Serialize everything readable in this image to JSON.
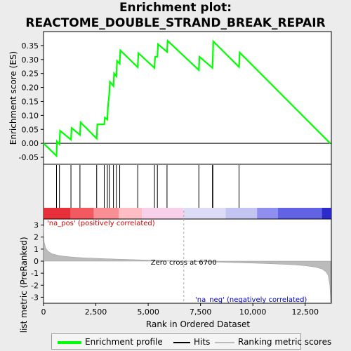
{
  "title_line1": "Enrichment plot:",
  "title_line2": "REACTOME_DOUBLE_STRAND_BREAK_REPAIR",
  "colors": {
    "enrichment_line": "#00ff00",
    "ranking_fill": "#bbbbbb",
    "pos_label": "#cc0000",
    "neg_label": "#0000cc",
    "zero_cross_line": "#aaaaaa"
  },
  "legend": {
    "enrichment_profile": "Enrichment profile",
    "hits": "Hits",
    "ranking_metric_scores": "Ranking metric scores"
  },
  "chart_data": [
    {
      "type": "line",
      "name": "enrichment-score-panel",
      "ylabel": "Enrichment score (ES)",
      "ylim": [
        -0.075,
        0.4
      ],
      "xlim": [
        0,
        13750
      ],
      "yticks": [
        -0.05,
        0.0,
        0.05,
        0.1,
        0.15,
        0.2,
        0.25,
        0.3,
        0.35
      ],
      "ytick_labels": [
        "-0.05",
        "0.00",
        "0.05",
        "0.10",
        "0.15",
        "0.20",
        "0.25",
        "0.30",
        "0.35"
      ],
      "grid": false,
      "series": [
        {
          "x": [
            0,
            620,
            640,
            760,
            790,
            1310,
            1340,
            1740,
            1770,
            2540,
            2570,
            2900,
            2930,
            3050,
            3080,
            3140,
            3170,
            3340,
            3370,
            3480,
            3510,
            3640,
            3670,
            4500,
            4530,
            5300,
            5330,
            5440,
            5470,
            5900,
            5930,
            7420,
            7450,
            8070,
            8090,
            8110,
            9340,
            9370,
            13700
          ],
          "y": [
            0.0,
            -0.045,
            0.007,
            -0.003,
            0.045,
            0.013,
            0.055,
            0.03,
            0.075,
            0.017,
            0.068,
            0.068,
            0.092,
            0.085,
            0.13,
            0.175,
            0.22,
            0.205,
            0.25,
            0.24,
            0.295,
            0.285,
            0.333,
            0.272,
            0.323,
            0.27,
            0.31,
            0.31,
            0.355,
            0.327,
            0.367,
            0.262,
            0.31,
            0.27,
            0.31,
            0.365,
            0.273,
            0.325,
            0.0
          ]
        }
      ]
    },
    {
      "type": "bar",
      "name": "hits-panel",
      "hit_positions": [
        620,
        760,
        1310,
        1740,
        2540,
        2900,
        3050,
        3140,
        3340,
        3480,
        3640,
        4500,
        5300,
        5440,
        5900,
        7420,
        8070,
        8090,
        9340
      ],
      "heatmap_segments": [
        {
          "from": 0,
          "to": 1300,
          "color": "#e8303a"
        },
        {
          "from": 1300,
          "to": 2400,
          "color": "#f25a60"
        },
        {
          "from": 2400,
          "to": 3600,
          "color": "#f98e94"
        },
        {
          "from": 3600,
          "to": 4700,
          "color": "#fdbdc2"
        },
        {
          "from": 4700,
          "to": 6700,
          "color": "#f8d0ea"
        },
        {
          "from": 6700,
          "to": 8700,
          "color": "#dcdcf6"
        },
        {
          "from": 8700,
          "to": 10200,
          "color": "#c4c4f2"
        },
        {
          "from": 10200,
          "to": 11200,
          "color": "#8f8ff0"
        },
        {
          "from": 11200,
          "to": 13300,
          "color": "#6262e4"
        },
        {
          "from": 13300,
          "to": 13750,
          "color": "#2b2bcc"
        }
      ]
    },
    {
      "type": "area",
      "name": "ranking-metric-panel",
      "xlabel": "Rank in Ordered Dataset",
      "ylabel": "Ranked list metric (PreRanked)",
      "ylim": [
        -3.5,
        3.5
      ],
      "xlim": [
        0,
        13750
      ],
      "yticks": [
        -3,
        -2,
        -1,
        0,
        1,
        2,
        3
      ],
      "ytick_labels": [
        "-3",
        "-2",
        "-1",
        "0",
        "1",
        "2",
        "3"
      ],
      "xticks": [
        0,
        2500,
        5000,
        7500,
        10000,
        12500
      ],
      "xtick_labels": [
        "0",
        "2,500",
        "5,000",
        "7,500",
        "10,000",
        "12,500"
      ],
      "x": [
        0,
        30,
        100,
        200,
        400,
        700,
        1000,
        1500,
        2000,
        3000,
        4000,
        5000,
        6000,
        6700,
        7500,
        8500,
        9500,
        10500,
        11500,
        12000,
        12500,
        13000,
        13300,
        13500,
        13600,
        13680,
        13720
      ],
      "values": [
        2.9,
        1.6,
        1.1,
        0.85,
        0.62,
        0.48,
        0.4,
        0.32,
        0.27,
        0.2,
        0.14,
        0.09,
        0.04,
        0.0,
        -0.04,
        -0.09,
        -0.14,
        -0.19,
        -0.26,
        -0.31,
        -0.38,
        -0.5,
        -0.65,
        -0.9,
        -1.2,
        -2.0,
        -3.4
      ],
      "zero_cross": 6700,
      "zero_cross_label": "Zero cross at 6700",
      "pos_label": "'na_pos' (positively correlated)",
      "neg_label": "'na_neg' (negatively correlated)"
    }
  ]
}
